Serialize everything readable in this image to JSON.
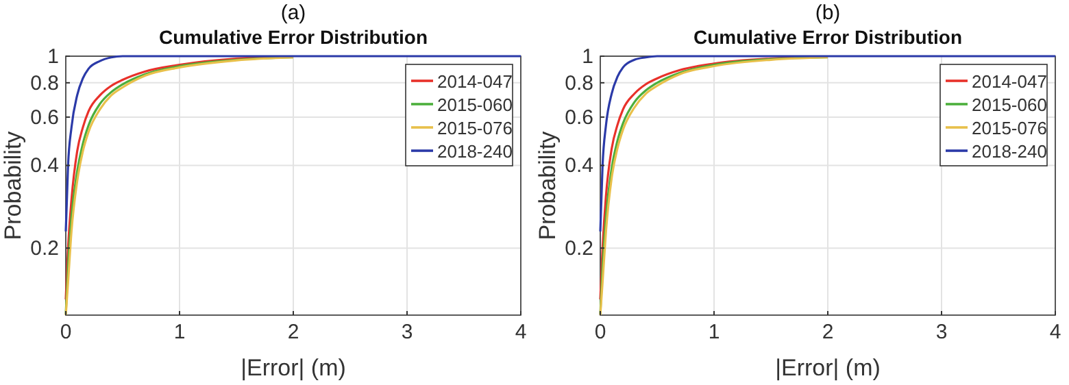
{
  "chart_data": [
    {
      "type": "line",
      "title": "Cumulative Error Distribution",
      "annotations": [
        "(a)"
      ],
      "xlabel": "|Error| (m)",
      "ylabel": "Probability",
      "log": "y",
      "grid": true,
      "legend": "top right",
      "xlim": [
        0,
        4
      ],
      "xticks": [
        0,
        1,
        2,
        3,
        4
      ],
      "ylim": [
        0.114,
        1
      ],
      "yticks": [
        0.2,
        0.4,
        0.6,
        0.8,
        1
      ],
      "x": [
        0,
        0.02,
        0.05,
        0.1,
        0.15,
        0.2,
        0.3,
        0.4,
        0.5,
        0.7,
        1,
        1.5,
        2,
        2.5,
        4
      ],
      "series": [
        {
          "name": "2014-047",
          "color": "#e8312a",
          "values": [
            0.13,
            0.2,
            0.3,
            0.45,
            0.55,
            0.63,
            0.72,
            0.78,
            0.82,
            0.88,
            0.93,
            0.98,
            0.995,
            null,
            null
          ]
        },
        {
          "name": "2015-060",
          "color": "#4caf3c",
          "values": [
            0.115,
            0.17,
            0.26,
            0.38,
            0.48,
            0.56,
            0.67,
            0.74,
            0.79,
            0.86,
            0.92,
            0.97,
            0.99,
            null,
            null
          ]
        },
        {
          "name": "2015-076",
          "color": "#e8c04a",
          "values": [
            0.114,
            0.15,
            0.23,
            0.35,
            0.45,
            0.53,
            0.64,
            0.72,
            0.77,
            0.85,
            0.91,
            0.965,
            0.99,
            null,
            null
          ]
        },
        {
          "name": "2018-240",
          "color": "#2b3aa8",
          "values": [
            0.23,
            0.4,
            0.55,
            0.72,
            0.83,
            0.9,
            0.96,
            0.99,
            1,
            1,
            1,
            1,
            1,
            1,
            1
          ]
        }
      ]
    },
    {
      "type": "line",
      "title": "Cumulative Error Distribution",
      "annotations": [
        "(b)"
      ],
      "xlabel": "|Error| (m)",
      "ylabel": "Probability",
      "log": "y",
      "grid": true,
      "legend": "top right",
      "xlim": [
        0,
        4
      ],
      "xticks": [
        0,
        1,
        2,
        3,
        4
      ],
      "ylim": [
        0.114,
        1
      ],
      "yticks": [
        0.2,
        0.4,
        0.6,
        0.8,
        1
      ],
      "x": [
        0,
        0.02,
        0.05,
        0.1,
        0.15,
        0.2,
        0.3,
        0.4,
        0.5,
        0.7,
        1,
        1.5,
        2,
        2.5,
        4
      ],
      "series": [
        {
          "name": "2014-047",
          "color": "#e8312a",
          "values": [
            0.13,
            0.2,
            0.31,
            0.46,
            0.56,
            0.64,
            0.73,
            0.79,
            0.83,
            0.89,
            0.94,
            0.98,
            0.995,
            null,
            null
          ]
        },
        {
          "name": "2015-060",
          "color": "#4caf3c",
          "values": [
            0.115,
            0.17,
            0.26,
            0.39,
            0.49,
            0.57,
            0.68,
            0.75,
            0.8,
            0.87,
            0.93,
            0.975,
            0.99,
            null,
            null
          ]
        },
        {
          "name": "2015-076",
          "color": "#e8c04a",
          "values": [
            0.114,
            0.15,
            0.23,
            0.36,
            0.46,
            0.54,
            0.65,
            0.73,
            0.78,
            0.86,
            0.92,
            0.97,
            0.99,
            null,
            null
          ]
        },
        {
          "name": "2018-240",
          "color": "#2b3aa8",
          "values": [
            0.23,
            0.4,
            0.56,
            0.73,
            0.84,
            0.91,
            0.97,
            0.99,
            1,
            1,
            1,
            1,
            1,
            1,
            1
          ]
        }
      ]
    }
  ]
}
